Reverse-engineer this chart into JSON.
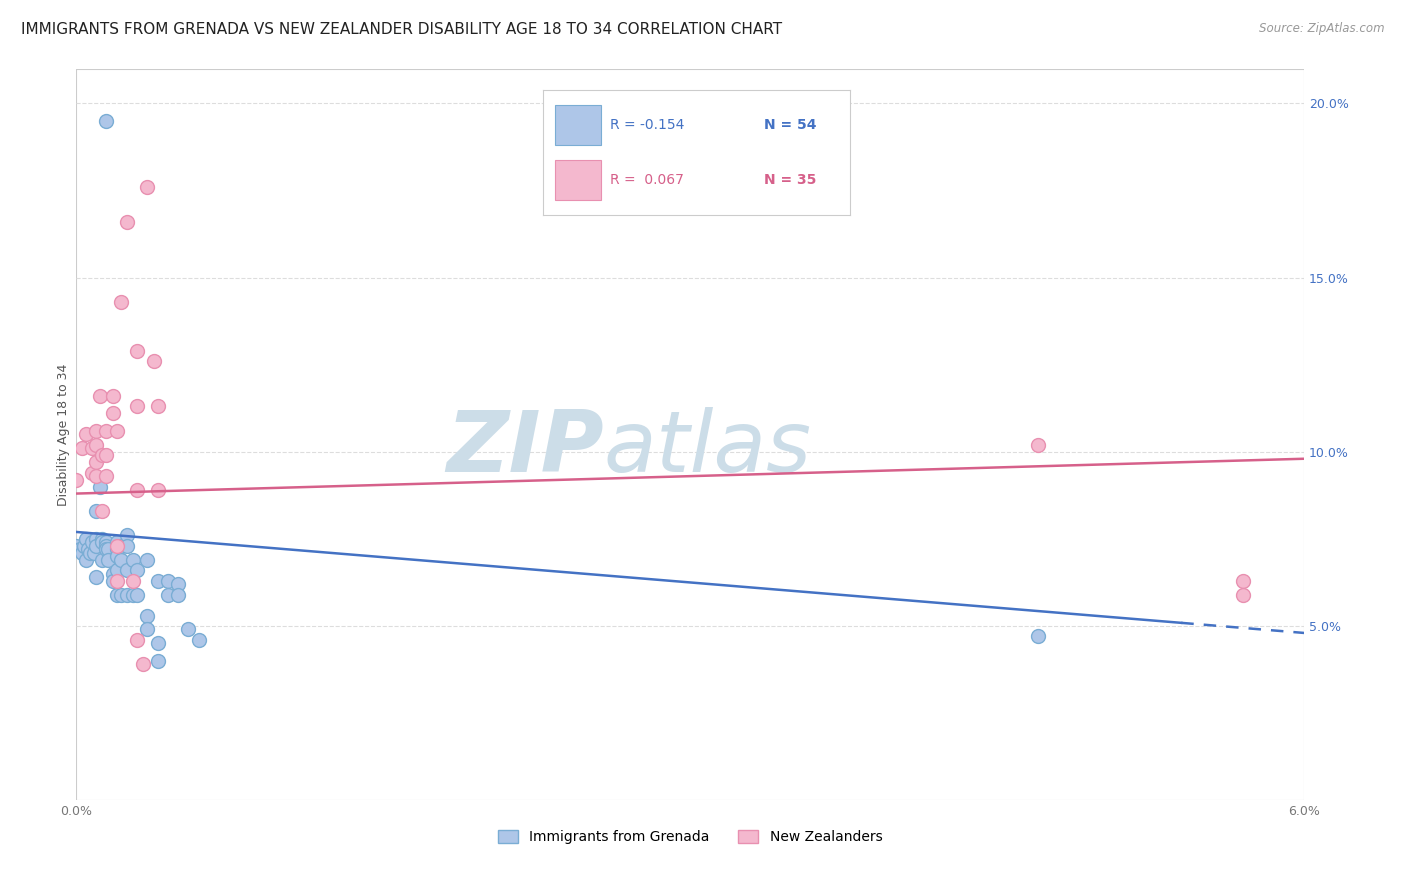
{
  "title": "IMMIGRANTS FROM GRENADA VS NEW ZEALANDER DISABILITY AGE 18 TO 34 CORRELATION CHART",
  "source": "Source: ZipAtlas.com",
  "ylabel": "Disability Age 18 to 34",
  "xlim": [
    0.0,
    0.06
  ],
  "ylim": [
    0.0,
    0.21
  ],
  "x_tick_positions": [
    0.0,
    0.01,
    0.02,
    0.03,
    0.04,
    0.05,
    0.06
  ],
  "x_tick_labels": [
    "0.0%",
    "",
    "",
    "",
    "",
    "",
    "6.0%"
  ],
  "y_ticks_right": [
    0.05,
    0.1,
    0.15,
    0.2
  ],
  "y_tick_labels_right": [
    "5.0%",
    "10.0%",
    "15.0%",
    "20.0%"
  ],
  "blue_scatter": [
    [
      0.0015,
      0.195
    ],
    [
      0.0,
      0.073
    ],
    [
      0.0002,
      0.072
    ],
    [
      0.0003,
      0.071
    ],
    [
      0.0004,
      0.073
    ],
    [
      0.0005,
      0.075
    ],
    [
      0.0005,
      0.069
    ],
    [
      0.0006,
      0.072
    ],
    [
      0.0007,
      0.071
    ],
    [
      0.0008,
      0.074
    ],
    [
      0.0009,
      0.071
    ],
    [
      0.001,
      0.083
    ],
    [
      0.001,
      0.075
    ],
    [
      0.001,
      0.073
    ],
    [
      0.001,
      0.064
    ],
    [
      0.0012,
      0.09
    ],
    [
      0.0013,
      0.075
    ],
    [
      0.0013,
      0.074
    ],
    [
      0.0013,
      0.069
    ],
    [
      0.0015,
      0.074
    ],
    [
      0.0015,
      0.073
    ],
    [
      0.0015,
      0.072
    ],
    [
      0.0016,
      0.072
    ],
    [
      0.0016,
      0.069
    ],
    [
      0.0018,
      0.065
    ],
    [
      0.0018,
      0.063
    ],
    [
      0.002,
      0.074
    ],
    [
      0.002,
      0.072
    ],
    [
      0.002,
      0.07
    ],
    [
      0.002,
      0.066
    ],
    [
      0.002,
      0.059
    ],
    [
      0.0022,
      0.073
    ],
    [
      0.0022,
      0.069
    ],
    [
      0.0022,
      0.059
    ],
    [
      0.0025,
      0.076
    ],
    [
      0.0025,
      0.073
    ],
    [
      0.0025,
      0.066
    ],
    [
      0.0025,
      0.059
    ],
    [
      0.0028,
      0.069
    ],
    [
      0.0028,
      0.059
    ],
    [
      0.003,
      0.066
    ],
    [
      0.003,
      0.059
    ],
    [
      0.0035,
      0.069
    ],
    [
      0.0035,
      0.053
    ],
    [
      0.0035,
      0.049
    ],
    [
      0.004,
      0.063
    ],
    [
      0.004,
      0.045
    ],
    [
      0.004,
      0.04
    ],
    [
      0.0045,
      0.063
    ],
    [
      0.0045,
      0.059
    ],
    [
      0.005,
      0.062
    ],
    [
      0.005,
      0.059
    ],
    [
      0.006,
      0.046
    ],
    [
      0.0055,
      0.049
    ],
    [
      0.047,
      0.047
    ]
  ],
  "pink_scatter": [
    [
      0.0,
      0.092
    ],
    [
      0.0003,
      0.101
    ],
    [
      0.0005,
      0.105
    ],
    [
      0.0008,
      0.101
    ],
    [
      0.0008,
      0.094
    ],
    [
      0.001,
      0.106
    ],
    [
      0.001,
      0.102
    ],
    [
      0.001,
      0.097
    ],
    [
      0.001,
      0.093
    ],
    [
      0.0012,
      0.116
    ],
    [
      0.0013,
      0.099
    ],
    [
      0.0013,
      0.083
    ],
    [
      0.0015,
      0.106
    ],
    [
      0.0015,
      0.099
    ],
    [
      0.0015,
      0.093
    ],
    [
      0.0018,
      0.116
    ],
    [
      0.0018,
      0.111
    ],
    [
      0.002,
      0.106
    ],
    [
      0.002,
      0.073
    ],
    [
      0.002,
      0.063
    ],
    [
      0.0022,
      0.143
    ],
    [
      0.0025,
      0.166
    ],
    [
      0.0028,
      0.063
    ],
    [
      0.003,
      0.129
    ],
    [
      0.003,
      0.113
    ],
    [
      0.003,
      0.089
    ],
    [
      0.003,
      0.046
    ],
    [
      0.0033,
      0.039
    ],
    [
      0.0035,
      0.176
    ],
    [
      0.0038,
      0.126
    ],
    [
      0.004,
      0.113
    ],
    [
      0.004,
      0.089
    ],
    [
      0.047,
      0.102
    ],
    [
      0.057,
      0.063
    ],
    [
      0.057,
      0.059
    ]
  ],
  "blue_line": {
    "x0": 0.0,
    "y0": 0.077,
    "x1": 0.06,
    "y1": 0.048
  },
  "blue_line_solid_end": 0.054,
  "pink_line": {
    "x0": 0.0,
    "y0": 0.088,
    "x1": 0.06,
    "y1": 0.098
  },
  "blue_line_color": "#4472c4",
  "pink_line_color": "#d6608a",
  "scatter_blue_facecolor": "#aec6e8",
  "scatter_pink_facecolor": "#f4b8ce",
  "scatter_blue_edgecolor": "#7aadd4",
  "scatter_pink_edgecolor": "#e890b0",
  "background_color": "#ffffff",
  "grid_color": "#dddddd",
  "watermark_zip": "ZIP",
  "watermark_atlas": "atlas",
  "watermark_color": "#ccdde8",
  "title_fontsize": 11,
  "axis_tick_fontsize": 9,
  "scatter_size": 100,
  "line_width": 1.8
}
